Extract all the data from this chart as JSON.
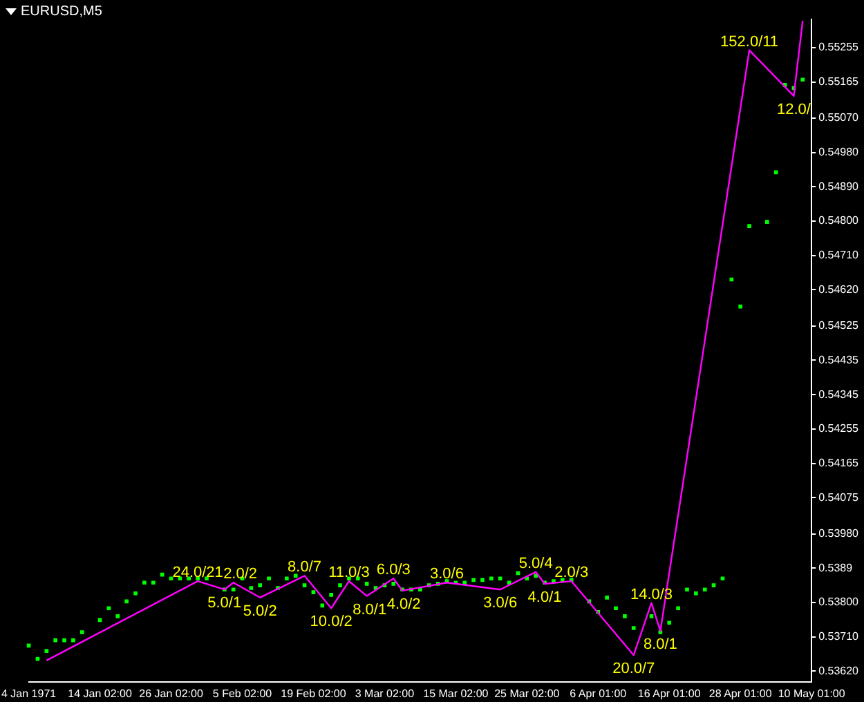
{
  "chart_data": {
    "type": "line",
    "title": "EURUSD,M5",
    "categories": [
      "4 Jan 1971",
      null,
      null,
      null,
      null,
      null,
      null,
      null,
      "14 Jan 02:00",
      null,
      null,
      null,
      null,
      null,
      null,
      null,
      "26 Jan 02:00",
      null,
      null,
      null,
      null,
      null,
      null,
      null,
      "5 Feb 02:00",
      null,
      null,
      null,
      null,
      null,
      null,
      null,
      "19 Feb 02:00",
      null,
      null,
      null,
      null,
      null,
      null,
      null,
      "3 Mar 02:00",
      null,
      null,
      null,
      null,
      null,
      null,
      null,
      "15 Mar 02:00",
      null,
      null,
      null,
      null,
      null,
      null,
      null,
      "25 Mar 02:00",
      null,
      null,
      null,
      null,
      null,
      null,
      null,
      "6 Apr 01:00",
      null,
      null,
      null,
      null,
      null,
      null,
      null,
      "16 Apr 01:00",
      null,
      null,
      null,
      null,
      null,
      null,
      null,
      "28 Apr 01:00",
      null,
      null,
      null,
      null,
      null,
      null,
      null,
      "10 May 01:00"
    ],
    "series": [
      {
        "color": "#ff00ff",
        "values": [
          null,
          null,
          0.53648,
          null,
          null,
          null,
          null,
          null,
          null,
          null,
          null,
          null,
          null,
          null,
          null,
          null,
          null,
          null,
          null,
          0.53856,
          null,
          null,
          0.53834,
          0.53852,
          null,
          null,
          0.53813,
          null,
          null,
          null,
          null,
          0.5387,
          null,
          null,
          0.53785,
          null,
          0.53856,
          null,
          0.53817,
          null,
          null,
          0.53863,
          0.53831,
          null,
          null,
          null,
          null,
          0.53852,
          null,
          null,
          null,
          null,
          null,
          0.53834,
          null,
          null,
          null,
          0.5388,
          0.53849,
          null,
          null,
          0.53856,
          null,
          null,
          null,
          null,
          null,
          null,
          0.53662,
          null,
          0.53799,
          0.53725,
          null,
          null,
          null,
          null,
          null,
          null,
          null,
          null,
          null,
          0.55248,
          null,
          null,
          null,
          null,
          0.55128,
          0.55325,
          null
        ]
      },
      {
        "type": "scatter",
        "color": "#00ff00",
        "values": [
          0.53687,
          0.53652,
          0.53673,
          0.53701,
          0.53701,
          0.53701,
          0.53722,
          null,
          0.53754,
          0.53785,
          0.53764,
          0.53803,
          0.53824,
          0.53852,
          0.53852,
          0.53873,
          0.53863,
          0.53863,
          0.53863,
          0.53863,
          0.53863,
          null,
          0.53834,
          0.53834,
          0.53863,
          0.53838,
          0.53845,
          0.53863,
          0.53838,
          0.53863,
          0.5387,
          0.53845,
          0.53827,
          0.53792,
          0.5382,
          0.53845,
          0.53863,
          0.53863,
          0.53849,
          0.53838,
          0.53845,
          0.53849,
          0.53834,
          0.53834,
          0.53834,
          0.53845,
          0.53849,
          0.53856,
          0.53852,
          0.53852,
          0.53859,
          0.53859,
          0.53863,
          0.53863,
          0.53852,
          0.53877,
          0.53863,
          0.5387,
          0.53852,
          0.53856,
          0.53859,
          0.53859,
          null,
          0.53803,
          0.53775,
          0.53813,
          0.53785,
          0.53764,
          0.53733,
          null,
          0.53764,
          0.53722,
          0.53747,
          0.53785,
          0.53834,
          0.53824,
          0.53834,
          0.53845,
          0.53863,
          0.54647,
          0.54576,
          0.54787,
          null,
          0.54798,
          0.54928,
          0.55157,
          0.55149,
          0.55171,
          null
        ]
      }
    ],
    "ylim": [
      0.53592,
      0.55329
    ],
    "yticks": [
      {
        "value": 0.5362,
        "label": "0.53620"
      },
      {
        "value": 0.5371,
        "label": "0.53710"
      },
      {
        "value": 0.538,
        "label": "0.53800"
      },
      0.5389,
      {
        "value": 0.5398,
        "label": "0.53980"
      },
      0.54075,
      0.54165,
      0.54255,
      0.54345,
      0.54435,
      0.54525,
      {
        "value": 0.5462,
        "label": "0.54620"
      },
      {
        "value": 0.5471,
        "label": "0.54710"
      },
      {
        "value": 0.548,
        "label": "0.54800"
      },
      {
        "value": 0.5489,
        "label": "0.54890"
      },
      {
        "value": 0.5498,
        "label": "0.54980"
      },
      {
        "value": 0.5507,
        "label": "0.55070"
      },
      0.55165,
      0.55255
    ],
    "annotations": [
      {
        "text": "24.0/21",
        "y": 0.53856
      },
      {
        "text": "5.0/1",
        "y": 0.53834
      },
      {
        "text": "2.0/2",
        "y": 0.53852
      },
      {
        "text": "5.0/2",
        "y": 0.53813
      },
      {
        "text": "8.0/7",
        "y": 0.5387
      },
      {
        "text": "10.0/2",
        "y": 0.53785
      },
      {
        "text": "11.0/3",
        "y": 0.53856
      },
      {
        "text": "8.0/1",
        "y": 0.53817
      },
      {
        "text": "6.0/3",
        "y": 0.53863
      },
      {
        "text": "4.0/2",
        "y": 0.53831
      },
      {
        "text": "3.0/6",
        "y": 0.53852
      },
      {
        "text": "3.0/6",
        "y": 0.53834
      },
      {
        "text": "5.0/4",
        "y": 0.5388
      },
      {
        "text": "4.0/1",
        "y": 0.53849
      },
      {
        "text": "2.0/3",
        "y": 0.53856
      },
      {
        "text": "20.0/7",
        "y": 0.53662
      },
      {
        "text": "14.0/3",
        "y": 0.53799
      },
      {
        "text": "8.0/1",
        "y": 0.53725
      },
      {
        "text": "152.0/11",
        "y": 0.55248
      },
      {
        "text": "12.0/",
        "y": 0.55128
      }
    ],
    "grid": false,
    "legend": false
  }
}
